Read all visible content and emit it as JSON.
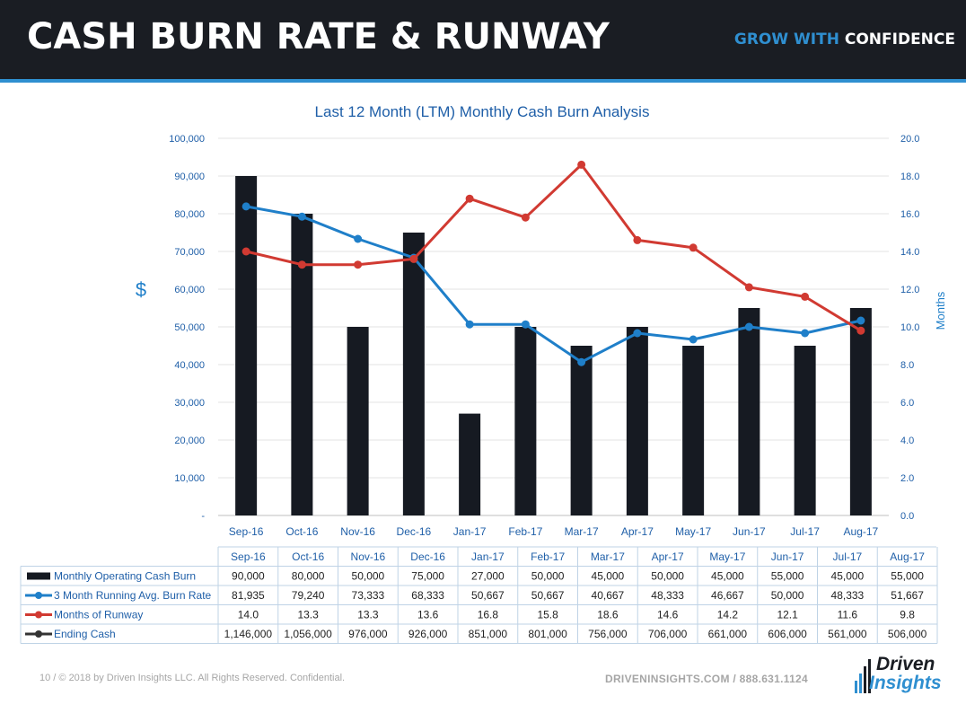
{
  "header": {
    "title": "CASH BURN RATE & RUNWAY",
    "tagline_part1": "GROW WITH",
    "tagline_part2": "CONFIDENCE"
  },
  "colors": {
    "header_bg": "#1a1d23",
    "accent_blue": "#2f8fd0",
    "bar": "#161a22",
    "avg_line": "#1f7fc9",
    "runway_line": "#d13a32",
    "ending_cash": "#333333"
  },
  "chart_data": {
    "type": "bar",
    "title": "Last 12 Month (LTM) Monthly Cash Burn Analysis",
    "ylabel": "$",
    "y2label": "Months",
    "ylim": [
      0,
      100000
    ],
    "y2lim": [
      0,
      20
    ],
    "yticks": [
      "-",
      "10,000",
      "20,000",
      "30,000",
      "40,000",
      "50,000",
      "60,000",
      "70,000",
      "80,000",
      "90,000",
      "100,000"
    ],
    "y2ticks": [
      "0.0",
      "2.0",
      "4.0",
      "6.0",
      "8.0",
      "10.0",
      "12.0",
      "14.0",
      "16.0",
      "18.0",
      "20.0"
    ],
    "categories": [
      "Sep-16",
      "Oct-16",
      "Nov-16",
      "Dec-16",
      "Jan-17",
      "Feb-17",
      "Mar-17",
      "Apr-17",
      "May-17",
      "Jun-17",
      "Jul-17",
      "Aug-17"
    ],
    "grid": true,
    "series": [
      {
        "name": "Monthly Operating Cash Burn",
        "kind": "bar",
        "axis": "left",
        "values": [
          90000,
          80000,
          50000,
          75000,
          27000,
          50000,
          45000,
          50000,
          45000,
          55000,
          45000,
          55000
        ],
        "labels": [
          "90,000",
          "80,000",
          "50,000",
          "75,000",
          "27,000",
          "50,000",
          "45,000",
          "50,000",
          "45,000",
          "55,000",
          "45,000",
          "55,000"
        ]
      },
      {
        "name": "3 Month Running Avg. Burn Rate",
        "kind": "line",
        "axis": "left",
        "values": [
          81935,
          79240,
          73333,
          68333,
          50667,
          50667,
          40667,
          48333,
          46667,
          50000,
          48333,
          51667
        ],
        "labels": [
          "81,935",
          "79,240",
          "73,333",
          "68,333",
          "50,667",
          "50,667",
          "40,667",
          "48,333",
          "46,667",
          "50,000",
          "48,333",
          "51,667"
        ]
      },
      {
        "name": "Months of Runway",
        "kind": "line",
        "axis": "right",
        "values": [
          14.0,
          13.3,
          13.3,
          13.6,
          16.8,
          15.8,
          18.6,
          14.6,
          14.2,
          12.1,
          11.6,
          9.8
        ],
        "labels": [
          "14.0",
          "13.3",
          "13.3",
          "13.6",
          "16.8",
          "15.8",
          "18.6",
          "14.6",
          "14.2",
          "12.1",
          "11.6",
          "9.8"
        ]
      },
      {
        "name": "Ending Cash",
        "kind": "table-only",
        "values": [
          1146000,
          1056000,
          976000,
          926000,
          851000,
          801000,
          756000,
          706000,
          661000,
          606000,
          561000,
          506000
        ],
        "labels": [
          "1,146,000",
          "1,056,000",
          "976,000",
          "926,000",
          "851,000",
          "801,000",
          "756,000",
          "706,000",
          "661,000",
          "606,000",
          "561,000",
          "506,000"
        ]
      }
    ]
  },
  "footer": {
    "page_info": "10 / © 2018 by Driven Insights LLC. All Rights Reserved. Confidential.",
    "contact": "DRIVENINSIGHTS.COM / 888.631.1124",
    "logo_word1": "Driven",
    "logo_word2": "Insights"
  }
}
